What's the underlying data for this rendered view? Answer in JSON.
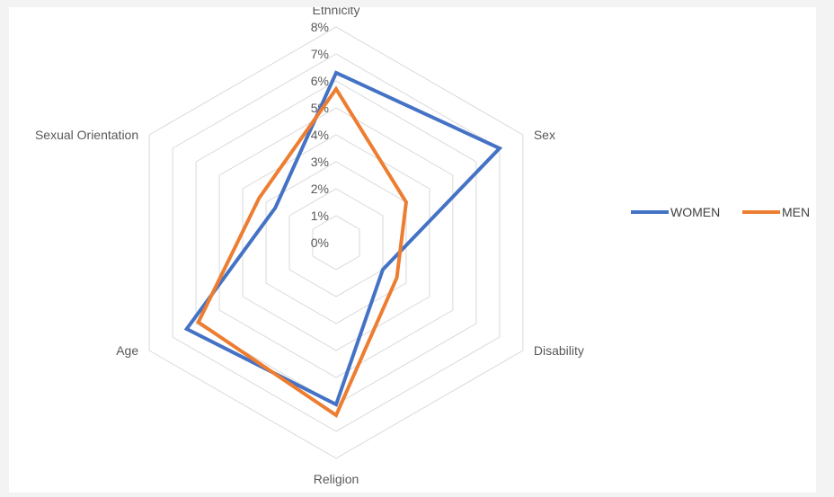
{
  "chart_data": {
    "type": "radar",
    "axes": [
      "Ethnicity",
      "Sex",
      "Disability",
      "Religion",
      "Age",
      "Sexual Orientation"
    ],
    "tick_labels": [
      "0%",
      "1%",
      "2%",
      "3%",
      "4%",
      "5%",
      "6%",
      "7%",
      "8%"
    ],
    "rlim": [
      0,
      8
    ],
    "grid": true,
    "legend_position": "right",
    "series": [
      {
        "name": "WOMEN",
        "color": "#4472c4",
        "values": [
          6.3,
          7.0,
          2.0,
          6.0,
          6.4,
          2.6
        ]
      },
      {
        "name": "MEN",
        "color": "#ed7d31",
        "values": [
          5.7,
          3.0,
          2.6,
          6.4,
          5.9,
          3.3
        ]
      }
    ]
  }
}
